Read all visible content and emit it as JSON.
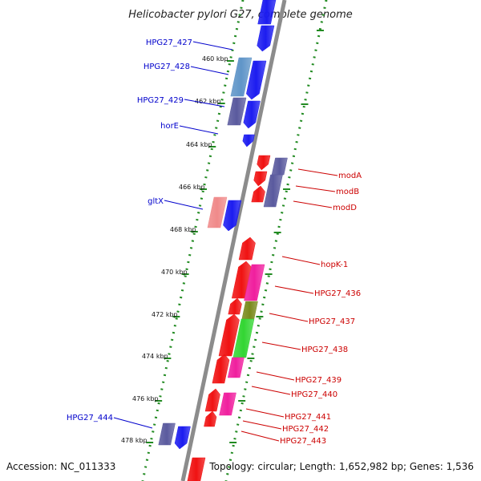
{
  "title": "Helicobacter pylori G27, complete genome",
  "footer": {
    "accession": "Accession: NC_011333",
    "topology": "Topology: circular; Length: 1,652,982 bp; Genes: 1,536"
  },
  "colors": {
    "forward_label": "#0000cc",
    "reverse_label": "#cc0000",
    "backbone": "#8c8c8c",
    "tick": "#228b22",
    "blue": "#1c1cf0",
    "red": "#f01212",
    "slate": "#5a5a9e",
    "steel": "#5f95c8",
    "salmon": "#f08a8a",
    "magenta": "#f01f9e",
    "olive": "#7a8a1c",
    "green": "#33d633"
  },
  "kbp_ticks": [
    "460 kbp",
    "462 kbp",
    "464 kbp",
    "466 kbp",
    "468 kbp",
    "470 kbp",
    "472 kbp",
    "474 kbp",
    "476 kbp",
    "478 kbp"
  ],
  "forward_labels": [
    "HPG27_427",
    "HPG27_428",
    "HPG27_429",
    "horE",
    "gltX",
    "HPG27_444"
  ],
  "reverse_labels": [
    "modA",
    "modB",
    "modD",
    "hopK-1",
    "HPG27_436",
    "HPG27_437",
    "HPG27_438",
    "HPG27_439",
    "HPG27_440",
    "HPG27_441",
    "HPG27_442",
    "HPG27_443"
  ]
}
